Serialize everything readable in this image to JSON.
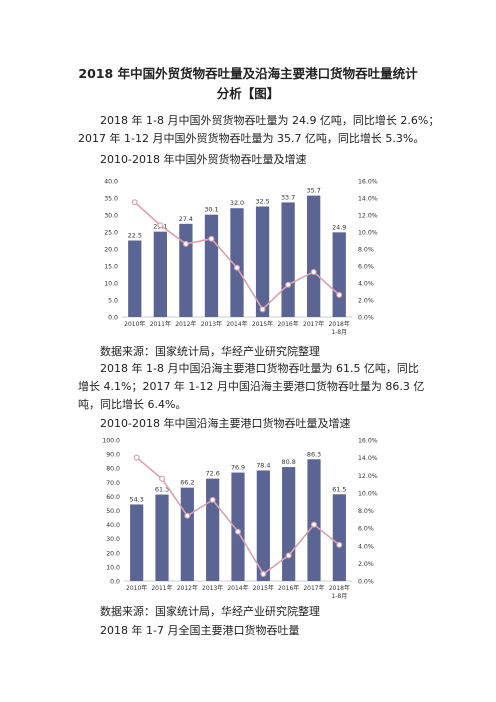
{
  "title_line1": "2018 年中国外贸货物吞吐量及沿海主要港口货物吞吐量统计",
  "title_line2": "分析【图】",
  "para1_line1": "2018 年 1-8 月中国外贸货物吞吐量为 24.9 亿吨，同比增长 2.6%；",
  "para1_line2": "2017 年 1-12 月中国外贸货物吞吐量为 35.7 亿吨，同比增长 5.3%。",
  "caption1": "2010-2018 年中国外贸货物吞吐量及增速",
  "source1": "数据来源：国家统计局，华经产业研究院整理",
  "para2_line1": "2018 年 1-8 月中国沿海主要港口货物吞吐量为 61.5 亿吨，同比",
  "para2_line2": "增长 4.1%；2017 年 1-12 月中国沿海主要港口货物吞吐量为 86.3 亿",
  "para2_line3": "吨，同比增长 6.4%。",
  "caption2": "2010-2018 年中国沿海主要港口货物吞吐量及增速",
  "source2": "数据来源：国家统计局，华经产业研究院整理",
  "caption3": "2018 年 1-7 月全国主要港口货物吞吐量",
  "colors": {
    "bar": "#5b6593",
    "line": "#d9a3b0",
    "marker_fill": "#ffffff"
  },
  "chart_data": [
    {
      "type": "bar",
      "categories": [
        "2010年",
        "2011年",
        "2012年",
        "2013年",
        "2014年",
        "2015年",
        "2016年",
        "2017年",
        "2018年1-8月"
      ],
      "series": [
        {
          "values": [
            22.5,
            25.1,
            27.4,
            30.1,
            32.0,
            32.5,
            33.7,
            35.7,
            24.9
          ],
          "axis": "left"
        },
        {
          "type": "line",
          "values": [
            13.5,
            10.8,
            8.6,
            9.2,
            5.8,
            0.9,
            3.8,
            5.3,
            2.6
          ],
          "axis": "right"
        }
      ],
      "data_labels": [
        "22.5",
        "25.1",
        "27.4",
        "30.1",
        "32.0",
        "32.5",
        "33.7",
        "35.7",
        "24.9"
      ],
      "ylim": [
        0,
        40
      ],
      "yticks": [
        "40.0",
        "35.0",
        "30.0",
        "25.0",
        "20.0",
        "15.0",
        "10.0",
        "5.0",
        "0.0"
      ],
      "y2lim": [
        0,
        16
      ],
      "y2ticks": [
        "16.0%",
        "14.0%",
        "12.0%",
        "10.0%",
        "8.0%",
        "6.0%",
        "4.0%",
        "2.0%",
        "0.0%"
      ],
      "grid": false
    },
    {
      "type": "bar",
      "categories": [
        "2010年",
        "2011年",
        "2012年",
        "2013年",
        "2014年",
        "2015年",
        "2016年",
        "2017年",
        "2018年1-8月"
      ],
      "series": [
        {
          "values": [
            54.3,
            61.3,
            66.2,
            72.6,
            76.9,
            78.4,
            80.8,
            86.3,
            61.5
          ],
          "axis": "left"
        },
        {
          "type": "line",
          "values": [
            14.0,
            11.6,
            7.4,
            9.2,
            5.6,
            0.8,
            2.9,
            6.4,
            4.1
          ],
          "axis": "right"
        }
      ],
      "data_labels": [
        "54.3",
        "61.3",
        "66.2",
        "72.6",
        "76.9",
        "78.4",
        "80.8",
        "86.3",
        "61.5"
      ],
      "ylim": [
        0,
        100
      ],
      "yticks": [
        "100.0",
        "90.0",
        "80.0",
        "70.0",
        "60.0",
        "50.0",
        "40.0",
        "30.0",
        "20.0",
        "10.0",
        "0.0"
      ],
      "y2lim": [
        0,
        16
      ],
      "y2ticks": [
        "16.0%",
        "14.0%",
        "12.0%",
        "10.0%",
        "8.0%",
        "6.0%",
        "4.0%",
        "2.0%",
        "0.0%"
      ],
      "grid": false
    }
  ]
}
